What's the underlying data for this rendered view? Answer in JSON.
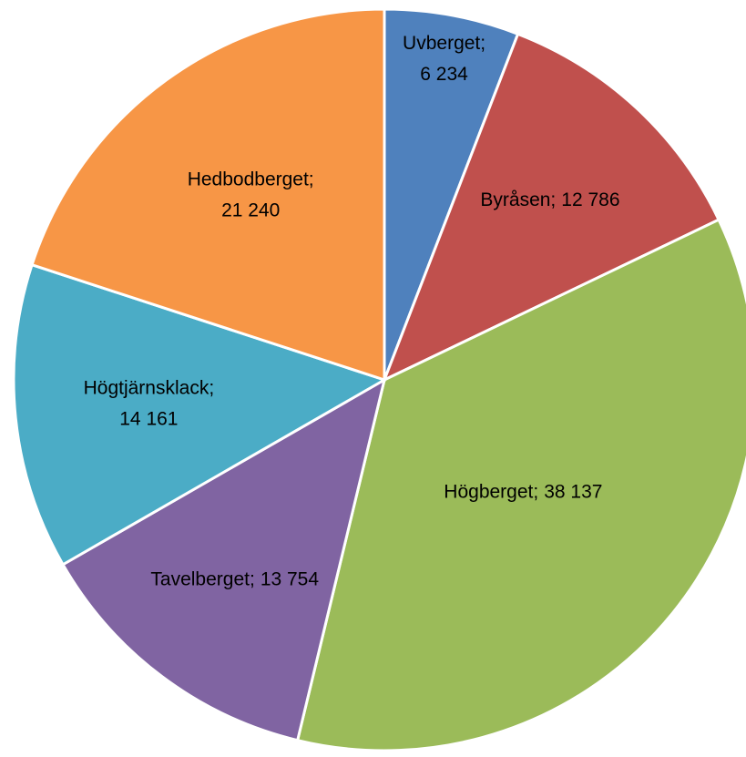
{
  "chart_data": {
    "type": "pie",
    "categories": [
      "Uvberget;",
      "Byråsen;",
      "Högberget;",
      "Tavelberget;",
      "Högtjärnsklack;",
      "Hedbodberget;"
    ],
    "values": [
      6234,
      12786,
      38137,
      13754,
      14161,
      21240
    ],
    "value_labels": [
      "6 234",
      "12 786",
      "38 137",
      "13 754",
      "14 161",
      "21 240"
    ],
    "colors": [
      "#4f81bd",
      "#c0504d",
      "#9bbb59",
      "#8064a2",
      "#4bacc6",
      "#f79646"
    ]
  }
}
